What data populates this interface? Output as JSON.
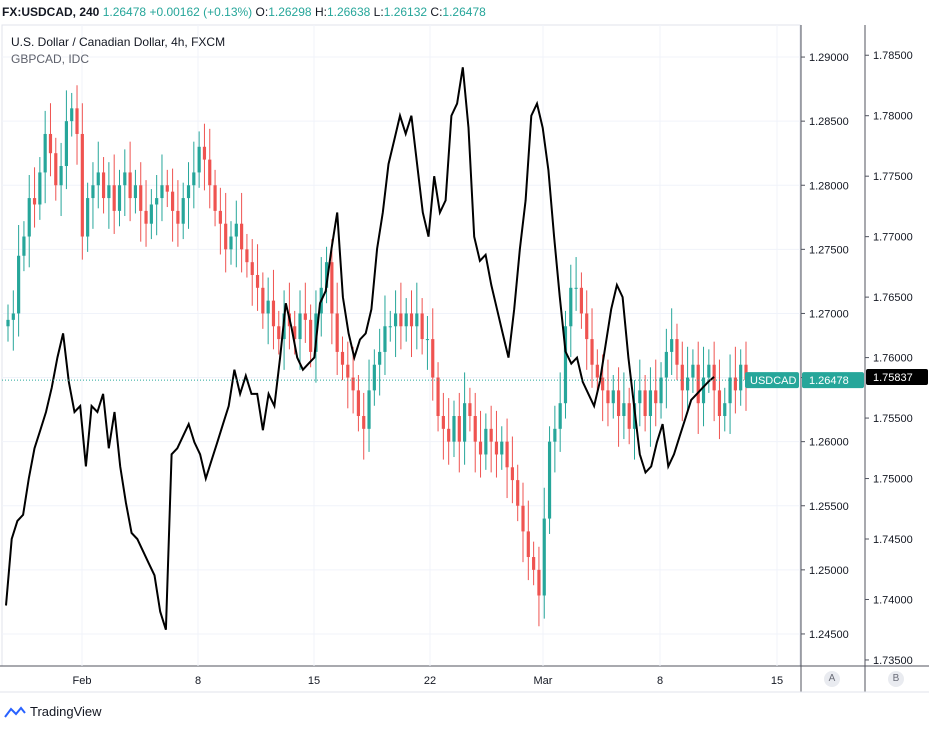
{
  "header": {
    "symbol": "FX:USDCAD, 240",
    "last": "1.26478",
    "change": "+0.00162 (+0.13%)",
    "o_label": "O:",
    "o": "1.26298",
    "h_label": "H:",
    "h": "1.26638",
    "l_label": "L:",
    "l": "1.26132",
    "c_label": "C:",
    "c": "1.26478"
  },
  "legend": {
    "title": "U.S. Dollar / Canadian Dollar, 4h, FXCM",
    "compare": "GBPCAD, IDC"
  },
  "badges": {
    "usdcad_label": "USDCAD",
    "usdcad_value": "1.26478",
    "gbpcad_value": "1.75837"
  },
  "scale_buttons": {
    "a": "A",
    "b": "B"
  },
  "branding": {
    "name": "TradingView"
  },
  "colors": {
    "up": "#26a69a",
    "down": "#ef5350",
    "compare_line": "#000000",
    "grid": "#f0f3fa"
  },
  "chart_data": {
    "type": "line",
    "grid": true,
    "x_ticks": [
      "Feb",
      "8",
      "15",
      "22",
      "Mar",
      "8",
      "15"
    ],
    "y_left_ticks": [
      "1.29000",
      "1.28500",
      "1.28000",
      "1.27500",
      "1.27000",
      "1.26500",
      "1.26000",
      "1.25500",
      "1.25000",
      "1.24500"
    ],
    "y_right_ticks": [
      "1.78500",
      "1.78000",
      "1.77500",
      "1.77000",
      "1.76500",
      "1.76000",
      "1.75500",
      "1.75000",
      "1.74500",
      "1.74000",
      "1.73500"
    ],
    "ylim_left": [
      1.2425,
      1.2925
    ],
    "ylim_right": [
      1.7345,
      1.7875
    ],
    "series": [
      {
        "name": "USDCAD",
        "kind": "candlestick-close",
        "values": [
          1.2695,
          1.27,
          1.2745,
          1.276,
          1.279,
          1.2785,
          1.281,
          1.284,
          1.2825,
          1.28,
          1.2815,
          1.285,
          1.286,
          1.284,
          1.276,
          1.279,
          1.28,
          1.281,
          1.279,
          1.28,
          1.278,
          1.28,
          1.281,
          1.279,
          1.28,
          1.278,
          1.277,
          1.2785,
          1.279,
          1.28,
          1.2795,
          1.278,
          1.277,
          1.279,
          1.28,
          1.281,
          1.283,
          1.282,
          1.28,
          1.278,
          1.277,
          1.275,
          1.276,
          1.277,
          1.275,
          1.274,
          1.273,
          1.272,
          1.27,
          1.271,
          1.269,
          1.268,
          1.27,
          1.269,
          1.268,
          1.27,
          1.2695,
          1.267,
          1.27,
          1.272,
          1.274,
          1.27,
          1.267,
          1.266,
          1.265,
          1.264,
          1.262,
          1.261,
          1.264,
          1.266,
          1.267,
          1.269,
          1.269,
          1.27,
          1.269,
          1.27,
          1.269,
          1.27,
          1.268,
          1.268,
          1.265,
          1.262,
          1.261,
          1.26,
          1.262,
          1.26,
          1.263,
          1.262,
          1.26,
          1.259,
          1.261,
          1.26,
          1.259,
          1.26,
          1.258,
          1.257,
          1.255,
          1.253,
          1.251,
          1.25,
          1.248,
          1.254,
          1.26,
          1.261,
          1.263,
          1.269,
          1.272,
          1.272,
          1.27,
          1.268,
          1.266,
          1.265,
          1.264,
          1.263,
          1.264,
          1.262,
          1.263,
          1.261,
          1.263,
          1.264,
          1.262,
          1.264,
          1.263,
          1.265,
          1.267,
          1.268,
          1.266,
          1.264,
          1.265,
          1.266,
          1.263,
          1.265,
          1.266,
          1.264,
          1.262,
          1.263,
          1.265,
          1.264,
          1.266,
          1.2648
        ]
      },
      {
        "name": "GBPCAD",
        "kind": "line",
        "values": [
          1.7395,
          1.745,
          1.7465,
          1.747,
          1.75,
          1.7525,
          1.754,
          1.7555,
          1.7575,
          1.76,
          1.762,
          1.758,
          1.7555,
          1.756,
          1.751,
          1.756,
          1.7555,
          1.757,
          1.7525,
          1.7555,
          1.751,
          1.748,
          1.7455,
          1.745,
          1.744,
          1.743,
          1.742,
          1.739,
          1.7375,
          1.752,
          1.7525,
          1.7535,
          1.7545,
          1.753,
          1.752,
          1.75,
          1.7515,
          1.753,
          1.7545,
          1.756,
          1.759,
          1.757,
          1.7585,
          1.757,
          1.757,
          1.754,
          1.757,
          1.756,
          1.76,
          1.7645,
          1.7625,
          1.76,
          1.759,
          1.7595,
          1.76,
          1.7645,
          1.7655,
          1.769,
          1.772,
          1.765,
          1.762,
          1.76,
          1.7615,
          1.762,
          1.764,
          1.769,
          1.772,
          1.776,
          1.778,
          1.78,
          1.7785,
          1.78,
          1.776,
          1.772,
          1.77,
          1.775,
          1.772,
          1.773,
          1.78,
          1.781,
          1.784,
          1.779,
          1.77,
          1.768,
          1.7685,
          1.766,
          1.764,
          1.762,
          1.76,
          1.764,
          1.769,
          1.773,
          1.78,
          1.781,
          1.779,
          1.7755,
          1.77,
          1.765,
          1.7605,
          1.7595,
          1.76,
          1.758,
          1.757,
          1.756,
          1.758,
          1.761,
          1.764,
          1.766,
          1.765,
          1.76,
          1.756,
          1.752,
          1.7505,
          1.751,
          1.753,
          1.7545,
          1.751,
          1.752,
          1.7535,
          1.755,
          1.7565,
          1.757,
          1.7575,
          1.758,
          1.7584
        ]
      }
    ]
  }
}
